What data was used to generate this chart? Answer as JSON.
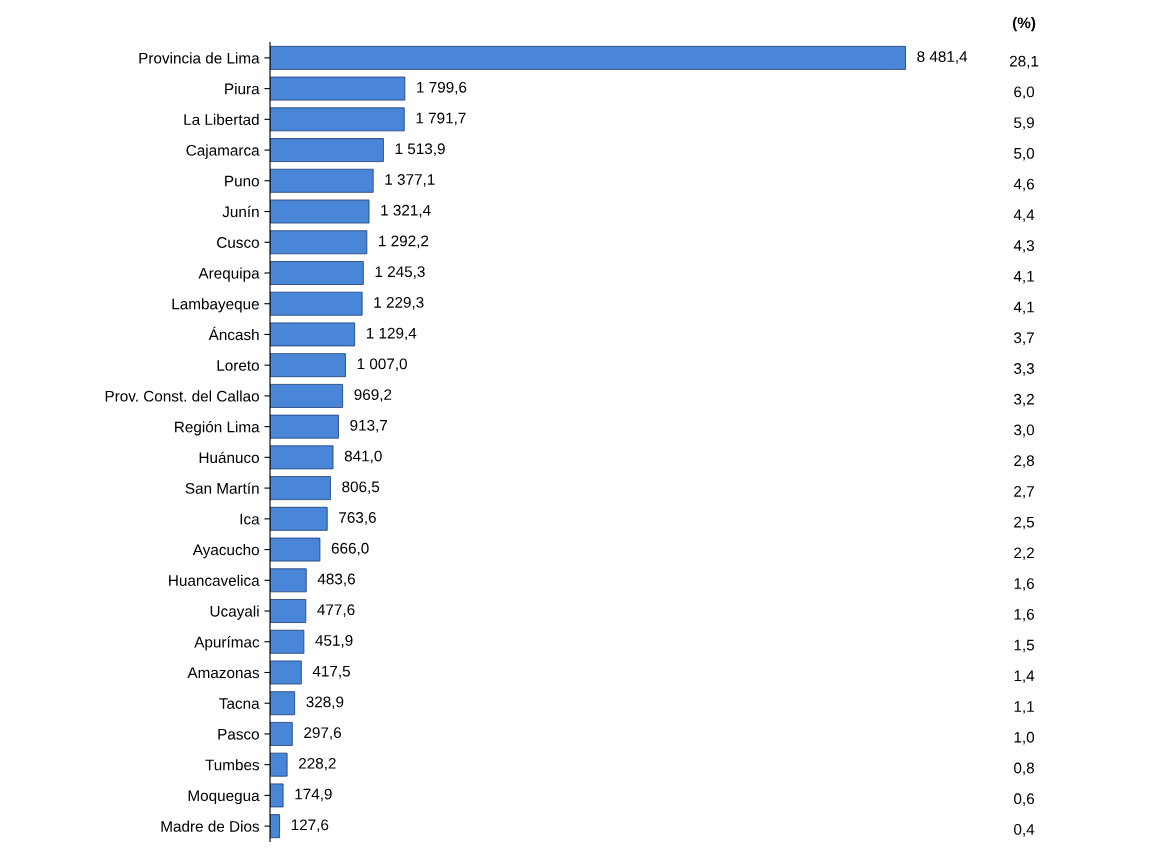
{
  "chart_data": {
    "type": "bar",
    "orientation": "horizontal",
    "categories": [
      "Provincia de Lima",
      "Piura",
      "La Libertad",
      "Cajamarca",
      "Puno",
      "Junín",
      "Cusco",
      "Arequipa",
      "Lambayeque",
      "Áncash",
      "Loreto",
      "Prov. Const. del Callao",
      "Región Lima",
      "Huánuco",
      "San Martín",
      "Ica",
      "Ayacucho",
      "Huancavelica",
      "Ucayali",
      "Apurímac",
      "Amazonas",
      "Tacna",
      "Pasco",
      "Tumbes",
      "Moquegua",
      "Madre de Dios"
    ],
    "values": [
      8481.4,
      1799.6,
      1791.7,
      1513.9,
      1377.1,
      1321.4,
      1292.2,
      1245.3,
      1229.3,
      1129.4,
      1007.0,
      969.2,
      913.7,
      841.0,
      806.5,
      763.6,
      666.0,
      483.6,
      477.6,
      451.9,
      417.5,
      328.9,
      297.6,
      228.2,
      174.9,
      127.6
    ],
    "value_labels": [
      "8 481,4",
      "1 799,6",
      "1 791,7",
      "1 513,9",
      "1 377,1",
      "1 321,4",
      "1 292,2",
      "1 245,3",
      "1 229,3",
      "1 129,4",
      "1 007,0",
      "969,2",
      "913,7",
      "841,0",
      "806,5",
      "763,6",
      "666,0",
      "483,6",
      "477,6",
      "451,9",
      "417,5",
      "328,9",
      "297,6",
      "228,2",
      "174,9",
      "127,6"
    ],
    "color": "#4a86d8",
    "annotations": [
      "(%)",
      "28,1",
      "6,0",
      "5,9",
      "5,0",
      "4,6",
      "4,4",
      "4,3",
      "4,1",
      "4,1",
      "3,7",
      "3,3",
      "3,2",
      "3,0",
      "2,8",
      "2,7",
      "2,5",
      "2,2",
      "1,6",
      "1,6",
      "1,5",
      "1,4",
      "1,1",
      "1,0",
      "0,8",
      "0,6",
      "0,4"
    ]
  }
}
